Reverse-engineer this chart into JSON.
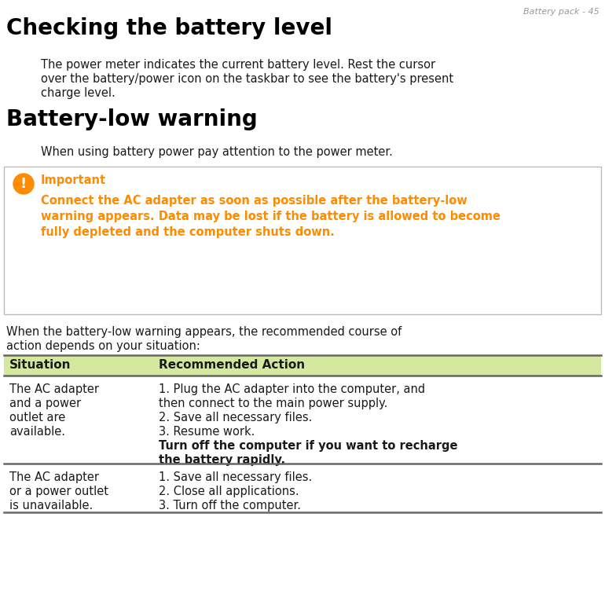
{
  "header": "Battery pack - 45",
  "title": "Checking the battery level",
  "section2_title": "Battery-low warning",
  "section2_intro": "When using battery power pay attention to the power meter.",
  "important_label": "Important",
  "imp_line1": "Connect the AC adapter as soon as possible after the battery-low",
  "imp_line2": "warning appears. Data may be lost if the battery is allowed to become",
  "imp_line3": "fully depleted and the computer shuts down.",
  "trans_line1": "When the battery-low warning appears, the recommended course of",
  "trans_line2": "action depends on your situation:",
  "tbl_h1": "Situation",
  "tbl_h2": "Recommended Action",
  "r1c1_1": "The AC adapter",
  "r1c1_2": "and a power",
  "r1c1_3": "outlet are",
  "r1c1_4": "available.",
  "r1c2_1": "1. Plug the AC adapter into the computer, and",
  "r1c2_2": "then connect to the main power supply.",
  "r1c2_3": "2. Save all necessary files.",
  "r1c2_4": "3. Resume work.",
  "r1c2_5b": "Turn off the computer if you want to recharge",
  "r1c2_6b": "the battery rapidly.",
  "r2c1_1": "The AC adapter",
  "r2c1_2": "or a power outlet",
  "r2c1_3": "is unavailable.",
  "r2c2_1": "1. Save all necessary files.",
  "r2c2_2": "2. Close all applications.",
  "r2c2_3": "3. Turn off the computer.",
  "sub_line1": "The power meter indicates the current battery level. Rest the cursor",
  "sub_line2": "over the battery/power icon on the taskbar to see the battery's present",
  "sub_line3": "charge level.",
  "bg_color": "#ffffff",
  "text_color": "#1a1a1a",
  "header_color": "#999999",
  "title_color": "#000000",
  "orange_color": "#FF8C00",
  "table_header_bg": "#d5e8a0",
  "table_border_color": "#666666",
  "imp_border_color": "#bbbbbb"
}
